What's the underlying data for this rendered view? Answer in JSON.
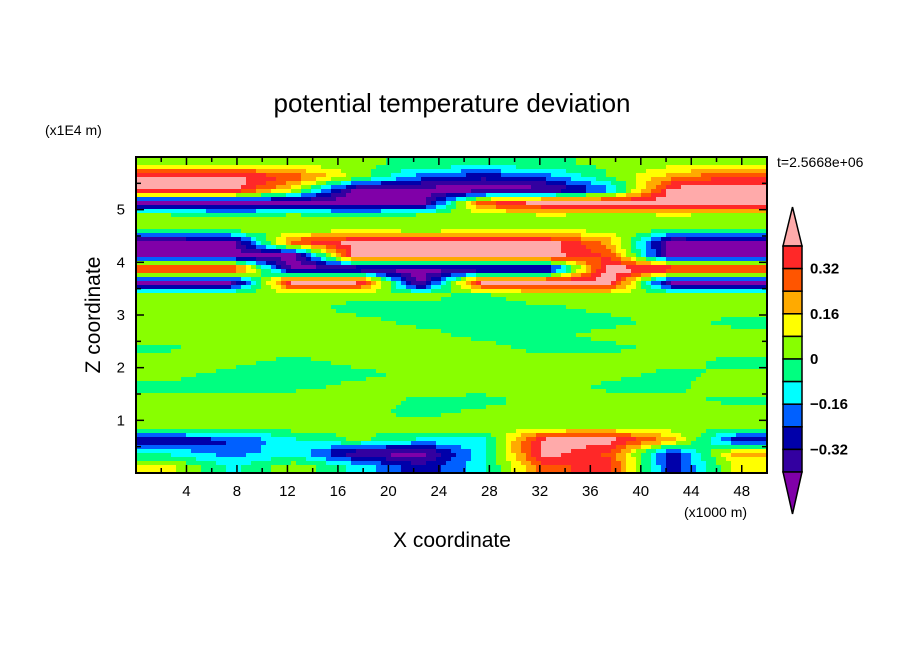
{
  "chart_data": {
    "type": "heatmap",
    "subtype": "filled-contour",
    "title": "potential temperature deviation",
    "xlabel": "X coordinate",
    "ylabel": "Z coordinate",
    "x_unit_label": "(x1000 m)",
    "y_unit_label": "(x1E4 m)",
    "time_label": "t=2.5668e+06",
    "xlim": [
      0,
      50
    ],
    "ylim": [
      0,
      6
    ],
    "xticks": [
      4,
      8,
      12,
      16,
      20,
      24,
      28,
      32,
      36,
      40,
      44,
      48
    ],
    "yticks": [
      1,
      2,
      3,
      4,
      5
    ],
    "levels": [
      -0.4,
      -0.32,
      -0.24,
      -0.16,
      -0.08,
      0,
      0.08,
      0.16,
      0.24,
      0.32,
      0.4
    ],
    "level_colors": [
      "#8000a8",
      "#3300a0",
      "#0000aa",
      "#0060ff",
      "#00ffff",
      "#00ff80",
      "#88ff00",
      "#ffff00",
      "#ffaa00",
      "#ff5500",
      "#ff2828",
      "#ffaaaa"
    ],
    "colorbar_labels": [
      "0.32",
      "0.16",
      "0",
      "−0.16",
      "−0.32"
    ],
    "colorbar_label_values": [
      0.32,
      0.16,
      0,
      -0.16,
      -0.32
    ],
    "grid_x": [
      2.5,
      7.5,
      12.5,
      17.5,
      22.5,
      27.5,
      32.5,
      37.5,
      42.5,
      47.5
    ],
    "grid_y": [
      5.875,
      5.625,
      5.375,
      5.125,
      4.875,
      4.625,
      4.375,
      4.125,
      3.875,
      3.625,
      3.375,
      3.125,
      2.875,
      2.625,
      2.375,
      2.125,
      1.875,
      1.625,
      1.375,
      1.125,
      0.875,
      0.625,
      0.375,
      0.125
    ],
    "values": [
      [
        0.05,
        0.05,
        0.05,
        0.02,
        -0.02,
        -0.02,
        -0.02,
        0.02,
        0.05,
        0.05
      ],
      [
        0.45,
        0.45,
        0.3,
        0.05,
        -0.2,
        -0.3,
        -0.2,
        0.0,
        0.2,
        0.35
      ],
      [
        0.45,
        0.45,
        0.1,
        -0.45,
        -0.45,
        -0.45,
        -0.45,
        -0.2,
        0.45,
        0.45
      ],
      [
        -0.45,
        -0.45,
        -0.45,
        -0.45,
        -0.45,
        0.3,
        0.45,
        0.45,
        0.45,
        0.45
      ],
      [
        0.05,
        0.02,
        0.05,
        0.02,
        0.05,
        0.02,
        0.05,
        0.02,
        0.05,
        0.02
      ],
      [
        0.02,
        0.05,
        0.02,
        0.05,
        0.02,
        0.05,
        0.05,
        0.05,
        0.02,
        0.05
      ],
      [
        -0.45,
        -0.45,
        0.3,
        0.45,
        0.45,
        0.45,
        0.45,
        0.2,
        -0.45,
        -0.45
      ],
      [
        -0.45,
        -0.45,
        -0.45,
        0.45,
        0.45,
        0.45,
        0.45,
        0.3,
        -0.45,
        -0.45
      ],
      [
        0.45,
        0.45,
        -0.45,
        -0.45,
        -0.45,
        -0.45,
        -0.45,
        0.45,
        0.45,
        0.45
      ],
      [
        -0.45,
        -0.45,
        0.45,
        0.45,
        -0.45,
        0.45,
        0.45,
        0.45,
        -0.45,
        -0.45
      ],
      [
        0.05,
        0.05,
        0.02,
        0.02,
        0.02,
        -0.02,
        0.05,
        0.05,
        0.05,
        0.02
      ],
      [
        0.05,
        0.05,
        0.02,
        -0.02,
        -0.02,
        -0.02,
        -0.02,
        0.02,
        0.05,
        0.05
      ],
      [
        0.02,
        0.05,
        0.05,
        0.02,
        -0.02,
        -0.02,
        -0.02,
        -0.02,
        0.02,
        -0.02
      ],
      [
        0.05,
        0.05,
        0.05,
        0.05,
        0.02,
        -0.02,
        -0.02,
        0.02,
        0.05,
        0.02
      ],
      [
        -0.02,
        0.05,
        0.05,
        0.05,
        0.05,
        0.02,
        -0.02,
        -0.02,
        0.02,
        0.05
      ],
      [
        0.05,
        0.02,
        -0.02,
        0.02,
        0.05,
        0.05,
        0.02,
        0.05,
        0.02,
        -0.02
      ],
      [
        0.02,
        -0.02,
        -0.02,
        -0.02,
        0.02,
        0.05,
        0.05,
        0.02,
        -0.02,
        0.02
      ],
      [
        -0.02,
        -0.02,
        -0.02,
        0.02,
        0.05,
        0.02,
        0.05,
        -0.02,
        -0.02,
        0.05
      ],
      [
        0.05,
        0.02,
        0.05,
        0.05,
        -0.02,
        -0.02,
        0.02,
        0.05,
        0.02,
        -0.02
      ],
      [
        0.05,
        0.05,
        0.05,
        0.02,
        -0.02,
        0.02,
        0.05,
        0.05,
        0.05,
        0.05
      ],
      [
        0.05,
        0.02,
        0.05,
        0.02,
        0.05,
        0.05,
        0.02,
        0.05,
        0.02,
        0.05
      ],
      [
        -0.3,
        -0.25,
        -0.1,
        0.02,
        -0.1,
        -0.1,
        0.45,
        0.45,
        0.2,
        -0.3
      ],
      [
        -0.1,
        -0.2,
        -0.1,
        -0.4,
        -0.45,
        -0.1,
        0.45,
        0.3,
        -0.3,
        0.2
      ],
      [
        0.1,
        -0.1,
        0.05,
        -0.1,
        -0.3,
        -0.1,
        0.3,
        0.35,
        -0.3,
        0.1
      ]
    ]
  }
}
